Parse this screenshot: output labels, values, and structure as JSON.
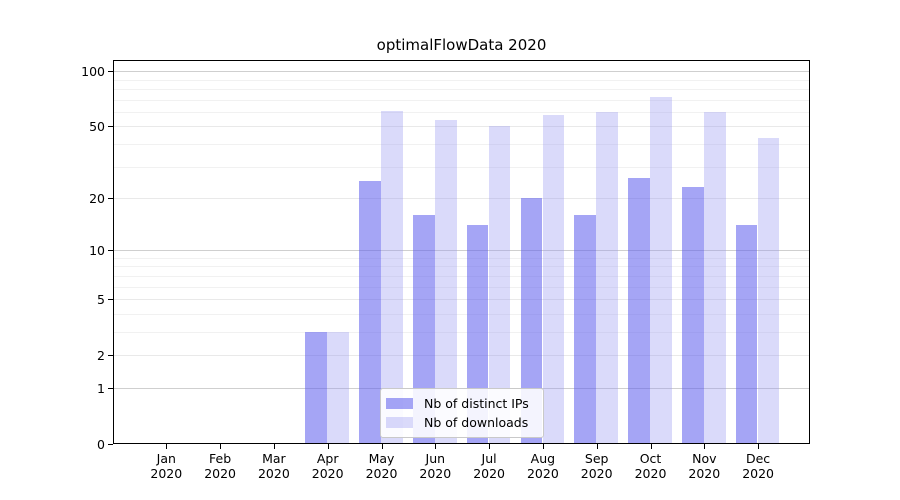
{
  "chart_data": {
    "type": "bar",
    "title": "optimalFlowData 2020",
    "categories": [
      {
        "month": "Jan",
        "year": "2020"
      },
      {
        "month": "Feb",
        "year": "2020"
      },
      {
        "month": "Mar",
        "year": "2020"
      },
      {
        "month": "Apr",
        "year": "2020"
      },
      {
        "month": "May",
        "year": "2020"
      },
      {
        "month": "Jun",
        "year": "2020"
      },
      {
        "month": "Jul",
        "year": "2020"
      },
      {
        "month": "Aug",
        "year": "2020"
      },
      {
        "month": "Sep",
        "year": "2020"
      },
      {
        "month": "Oct",
        "year": "2020"
      },
      {
        "month": "Nov",
        "year": "2020"
      },
      {
        "month": "Dec",
        "year": "2020"
      }
    ],
    "series": [
      {
        "name": "Nb of distinct IPs",
        "color": "rgba(95, 95, 238, 0.56)",
        "values": [
          0,
          0,
          0,
          3,
          25,
          16,
          14,
          20,
          16,
          26,
          23,
          14
        ]
      },
      {
        "name": "Nb of downloads",
        "color": "rgba(150, 150, 240, 0.35)",
        "values": [
          0,
          0,
          0,
          3,
          61,
          54,
          50,
          58,
          60,
          72,
          60,
          43
        ]
      }
    ],
    "yscale": "symlog",
    "yticks": [
      0,
      1,
      2,
      5,
      10,
      20,
      50,
      100
    ],
    "ylim": [
      0,
      115
    ],
    "grid": true,
    "legend_position": "bottom-center",
    "background": "#ffffff",
    "axis_color": "#000000",
    "grid_major_color": "#cfcfcf",
    "grid_mid_color": "#e9e9e9",
    "grid_minor_color": "#f1f1f1"
  }
}
